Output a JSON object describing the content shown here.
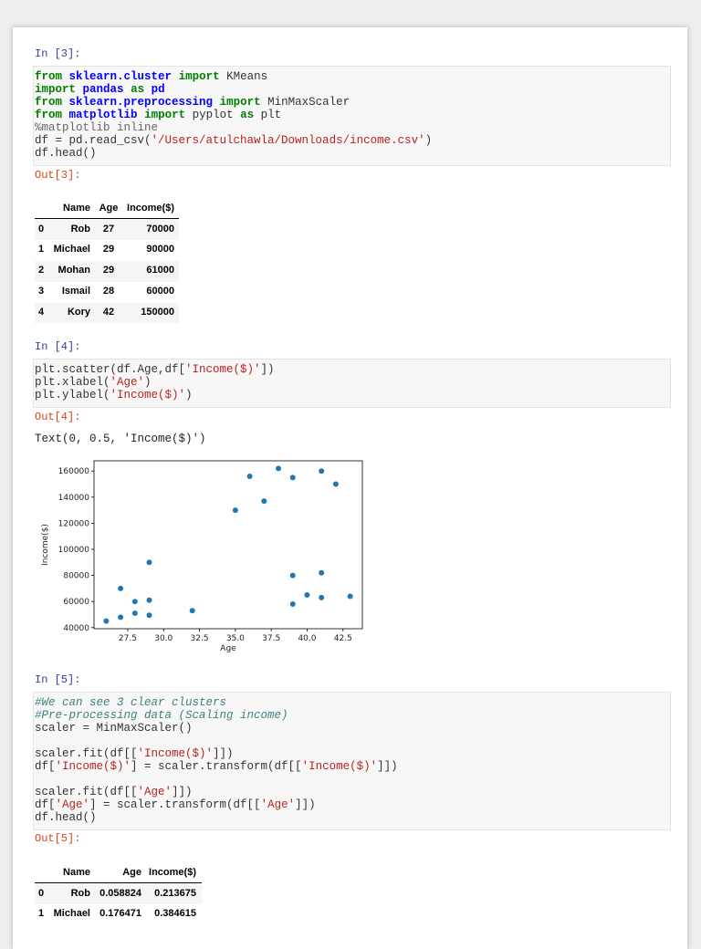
{
  "cells": [
    {
      "prompt": "In [3]:",
      "input": {
        "lines": [
          [
            {
              "t": "from",
              "s": "kw"
            },
            " ",
            {
              "t": "sklearn.cluster",
              "s": "ns"
            },
            " ",
            {
              "t": "import",
              "s": "kw"
            },
            " KMeans"
          ],
          [
            {
              "t": "import",
              "s": "kw"
            },
            " ",
            {
              "t": "pandas",
              "s": "ns"
            },
            " ",
            {
              "t": "as",
              "s": "kw"
            },
            " ",
            {
              "t": "pd",
              "s": "ns"
            }
          ],
          [
            {
              "t": "from",
              "s": "kw"
            },
            " ",
            {
              "t": "sklearn.preprocessing",
              "s": "ns"
            },
            " ",
            {
              "t": "import",
              "s": "kw"
            },
            " MinMaxScaler"
          ],
          [
            {
              "t": "from",
              "s": "kw"
            },
            " ",
            {
              "t": "matplotlib",
              "s": "ns"
            },
            " ",
            {
              "t": "import",
              "s": "kw"
            },
            " pyplot ",
            {
              "t": "as",
              "s": "kw"
            },
            " plt"
          ],
          [
            {
              "t": "%matplotlib inline",
              "s": "magic"
            }
          ],
          [
            "df = pd.read_csv(",
            {
              "t": "'/Users/atulchawla/Downloads/income.csv'",
              "s": "str"
            },
            ")"
          ],
          [
            "df.head()"
          ]
        ]
      }
    },
    {
      "prompt": "Out[3]:",
      "table": {
        "columns": [
          "Name",
          "Age",
          "Income($)"
        ],
        "rows": [
          [
            0,
            "Rob",
            27,
            70000
          ],
          [
            1,
            "Michael",
            29,
            90000
          ],
          [
            2,
            "Mohan",
            29,
            61000
          ],
          [
            3,
            "Ismail",
            28,
            60000
          ],
          [
            4,
            "Kory",
            42,
            150000
          ]
        ]
      }
    },
    {
      "prompt": "In [4]:",
      "input": {
        "lines": [
          [
            "plt.scatter(df.Age,df[",
            {
              "t": "'Income($)'",
              "s": "str"
            },
            "])"
          ],
          [
            "plt.xlabel(",
            {
              "t": "'Age'",
              "s": "str"
            },
            ")"
          ],
          [
            "plt.ylabel(",
            {
              "t": "'Income($)'",
              "s": "str"
            },
            ")"
          ]
        ]
      }
    },
    {
      "prompt": "Out[4]:",
      "text": "Text(0, 0.5, 'Income($)')",
      "chart": {
        "type": "scatter",
        "color": "#1f77b4",
        "xlabel": "Age",
        "ylabel": "Income($)",
        "x": [
          27,
          29,
          29,
          28,
          42,
          39,
          41,
          38,
          36,
          35,
          37,
          26,
          27,
          28,
          29,
          32,
          40,
          41,
          43,
          39,
          41,
          39
        ],
        "y": [
          70000,
          90000,
          61000,
          60000,
          150000,
          155000,
          160000,
          162000,
          156000,
          130000,
          137000,
          45000,
          48000,
          51000,
          49500,
          53000,
          65000,
          63000,
          64000,
          80000,
          82000,
          58000
        ],
        "xlim": [
          25.15,
          43.85
        ],
        "ylim": [
          39150,
          167850
        ],
        "xticks": [
          27.5,
          {
            "value": 30,
            "label": "30.0"
          },
          32.5,
          {
            "value": 35,
            "label": "35.0"
          },
          37.5,
          {
            "value": 40,
            "label": "40.0"
          },
          42.5
        ],
        "yticks": [
          40000,
          60000,
          80000,
          100000,
          120000,
          140000,
          160000
        ]
      }
    },
    {
      "prompt": "In [5]:",
      "input": {
        "lines": [
          [
            {
              "t": "#We can see 3 clear clusters",
              "s": "cm"
            }
          ],
          [
            {
              "t": "#Pre-processing data (Scaling income)",
              "s": "cm"
            }
          ],
          [
            "scaler = MinMaxScaler()"
          ],
          [],
          [
            "scaler.fit(df[[",
            {
              "t": "'Income($)'",
              "s": "str"
            },
            "]])"
          ],
          [
            "df[",
            {
              "t": "'Income($)'",
              "s": "str"
            },
            "] = scaler.transform(df[[",
            {
              "t": "'Income($)'",
              "s": "str"
            },
            "]])"
          ],
          [],
          [
            "scaler.fit(df[[",
            {
              "t": "'Age'",
              "s": "str"
            },
            "]])"
          ],
          [
            "df[",
            {
              "t": "'Age'",
              "s": "str"
            },
            "] = scaler.transform(df[[",
            {
              "t": "'Age'",
              "s": "str"
            },
            "]])"
          ],
          [
            "df.head()"
          ]
        ]
      }
    },
    {
      "prompt": "Out[5]:",
      "table": {
        "columns": [
          "Name",
          "Age",
          "Income($)"
        ],
        "rows": [
          [
            0,
            "Rob",
            0.058824,
            0.213675
          ],
          [
            1,
            "Michael",
            0.176471,
            0.384615
          ]
        ]
      }
    }
  ]
}
